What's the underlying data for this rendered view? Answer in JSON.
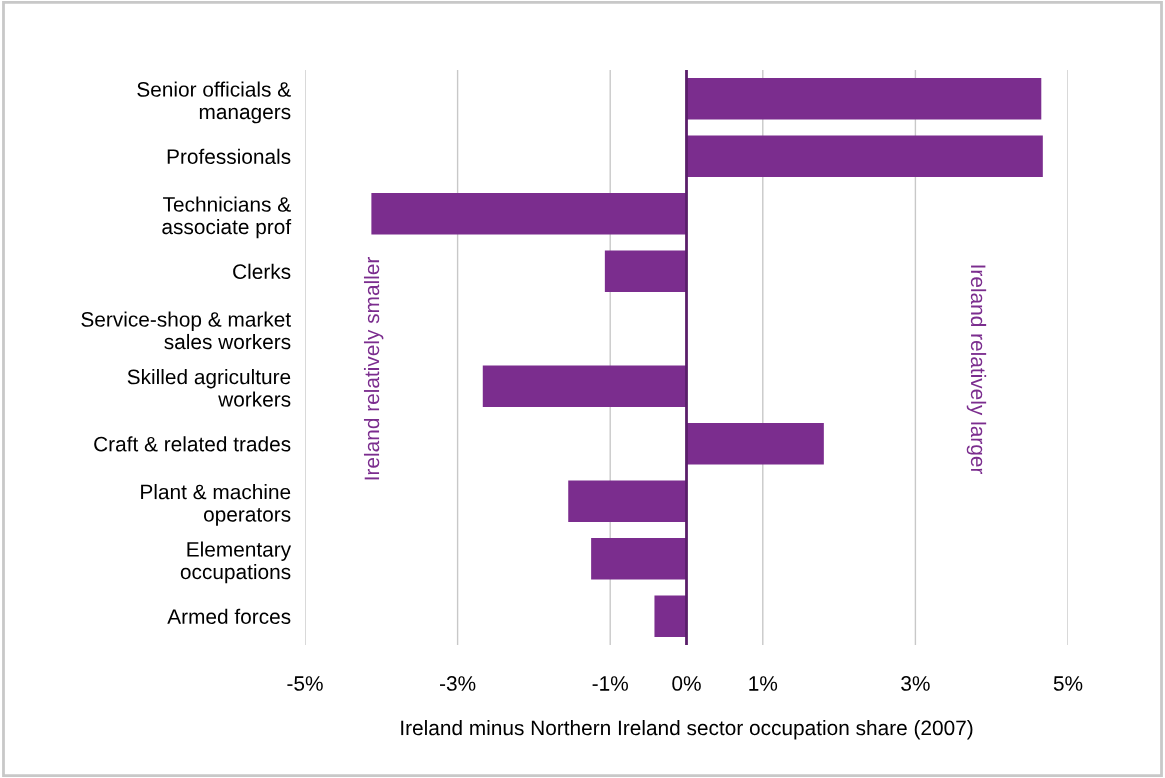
{
  "chart_data": {
    "type": "bar",
    "orientation": "horizontal",
    "categories": [
      "Senior officials &\nmanagers",
      "Professionals",
      "Technicians &\nassociate prof",
      "Clerks",
      "Service-shop & market\nsales workers",
      "Skilled agriculture\nworkers",
      "Craft & related trades",
      "Plant & machine\noperators",
      "Elementary\noccupations",
      "Armed forces"
    ],
    "values": [
      4.65,
      4.67,
      -4.13,
      -1.07,
      0,
      -2.67,
      1.8,
      -1.55,
      -1.25,
      -0.42
    ],
    "color": "#7b2d8e",
    "xlabel": "Ireland minus Northern Ireland sector occupation share (2007)",
    "xlim": [
      -5,
      5
    ],
    "xticks": [
      {
        "value": -5,
        "label": "-5%"
      },
      {
        "value": -3,
        "label": "-3%"
      },
      {
        "value": -1,
        "label": "-1%"
      },
      {
        "value": 0,
        "label": "0%"
      },
      {
        "value": 1,
        "label": "1%"
      },
      {
        "value": 3,
        "label": "3%"
      },
      {
        "value": 5,
        "label": "5%"
      }
    ],
    "grid": "x",
    "ref_lines": [
      {
        "axis": "x",
        "value": 0,
        "color": "#5a1e6a"
      }
    ],
    "annotations": [
      "Ireland relatively smaller",
      "Ireland relatively larger"
    ]
  }
}
